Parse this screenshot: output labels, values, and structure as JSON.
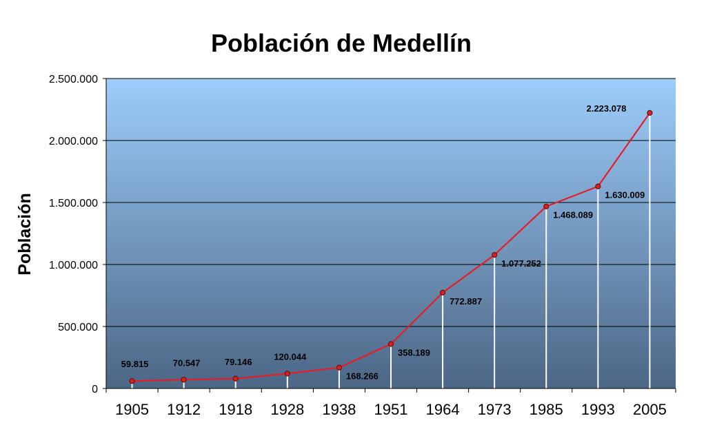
{
  "chart_data": {
    "type": "line",
    "title": "Población de Medellín",
    "xlabel": "",
    "ylabel": "Población",
    "ylim": [
      0,
      2500000
    ],
    "yticks": [
      0,
      500000,
      1000000,
      1500000,
      2000000,
      2500000
    ],
    "ytick_labels": [
      "0",
      "500.000",
      "1.000.000",
      "1.500.000",
      "2.000.000",
      "2.500.000"
    ],
    "categories": [
      "1905",
      "1912",
      "1918",
      "1928",
      "1938",
      "1951",
      "1964",
      "1973",
      "1985",
      "1993",
      "2005"
    ],
    "series": [
      {
        "values": [
          59815,
          70547,
          79146,
          120044,
          168266,
          358189,
          772887,
          1077252,
          1468089,
          1630009,
          2223078
        ],
        "labels": [
          "59.815",
          "70.547",
          "79.146",
          "120.044",
          "168.266",
          "358.189",
          "772.887",
          "1.077.252",
          "1.468.089",
          "1.630.009",
          "2.223.078"
        ]
      }
    ],
    "grid": true,
    "legend": "none",
    "colors": {
      "line": "#e41e25",
      "marker_fill": "#d9201f",
      "marker_stroke": "#5a0d0d",
      "plot_bg_top": "#9dcdfb",
      "plot_bg_bottom": "#4c6685",
      "gridline": "#000000",
      "drop_line": "#ffffff"
    }
  }
}
